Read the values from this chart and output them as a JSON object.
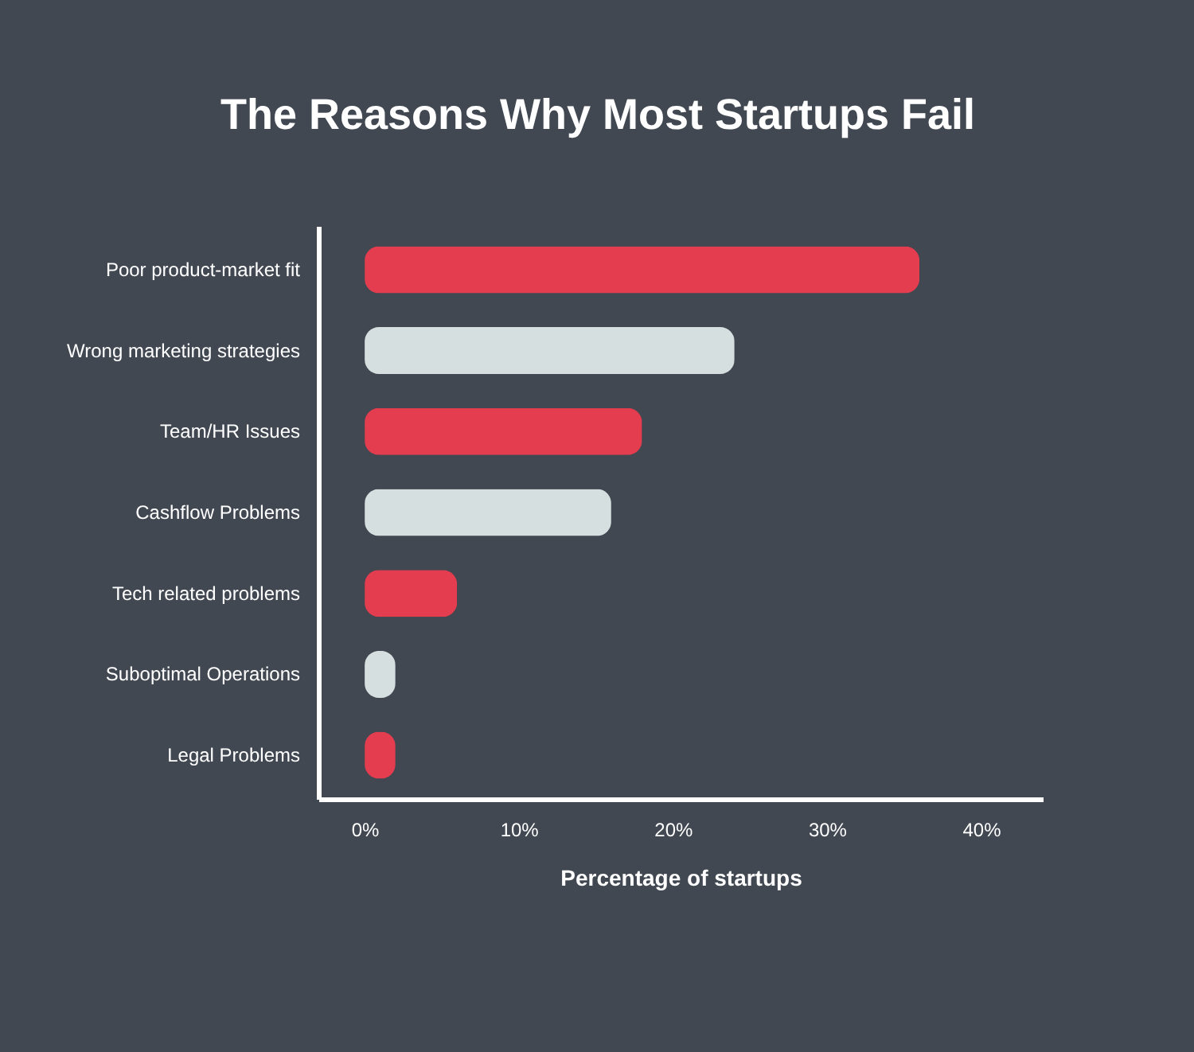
{
  "chart_data": {
    "type": "bar",
    "orientation": "horizontal",
    "title": "The Reasons Why Most Startups Fail",
    "xlabel": "Percentage of startups",
    "categories": [
      "Poor product-market fit",
      "Wrong marketing strategies",
      "Team/HR Issues",
      "Cashflow Problems",
      "Tech related problems",
      "Suboptimal Operations",
      "Legal Problems"
    ],
    "values": [
      36,
      24,
      18,
      16,
      6,
      2,
      2
    ],
    "colors": [
      "#e43d4f",
      "#d6dfe0",
      "#e43d4f",
      "#d6dfe0",
      "#e43d4f",
      "#d6dfe0",
      "#e43d4f"
    ],
    "xlim": [
      -3,
      44
    ],
    "xticks": [
      {
        "value": 0,
        "label": "0%"
      },
      {
        "value": 10,
        "label": "10%"
      },
      {
        "value": 20,
        "label": "20%"
      },
      {
        "value": 30,
        "label": "30%"
      },
      {
        "value": 40,
        "label": "40%"
      }
    ]
  }
}
